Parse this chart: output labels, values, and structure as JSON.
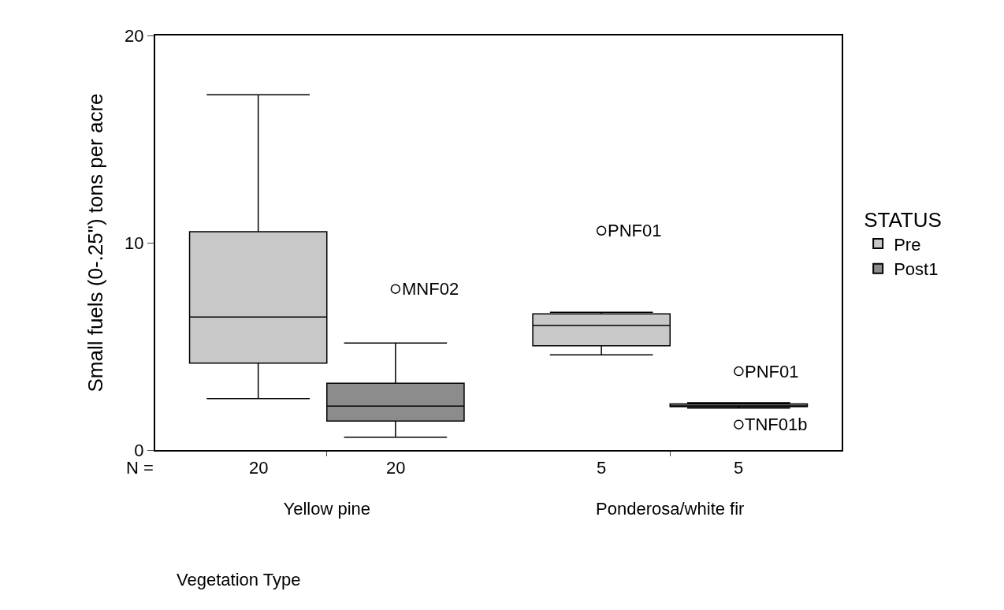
{
  "chart_data": {
    "type": "box",
    "xlabel": "Vegetation Type",
    "ylabel": "Small fuels (0-.25\") tons per acre",
    "legend_title": "STATUS",
    "categories": [
      "Yellow pine",
      "Ponderosa/white fir"
    ],
    "series": [
      {
        "name": "Pre",
        "color": "#c8c8c8",
        "boxes": [
          {
            "low": 2.48,
            "q1": 4.19,
            "median": 6.42,
            "q3": 10.53,
            "high": 17.14
          },
          {
            "low": 4.59,
            "q1": 5.03,
            "median": 6.01,
            "q3": 6.57,
            "high": 6.64,
            "outliers": [
              10.58
            ]
          }
        ]
      },
      {
        "name": "Post1",
        "color": "#8c8c8c",
        "boxes": [
          {
            "low": 0.62,
            "q1": 1.4,
            "median": 2.12,
            "q3": 3.22,
            "high": 5.16,
            "outliers": [
              7.77
            ]
          },
          {
            "low": 2.02,
            "q1": 2.09,
            "median": 2.09,
            "q3": 2.22,
            "high": 2.28,
            "outliers": [
              3.8,
              1.23
            ]
          }
        ]
      }
    ],
    "ylim": [
      0,
      20
    ],
    "yticks": [
      0,
      10,
      20
    ],
    "legend": "right",
    "annotations": [
      "N =",
      "20",
      "20",
      "5",
      "5",
      "MNF02",
      "PNF01",
      "PNF01",
      "TNF01b"
    ]
  }
}
